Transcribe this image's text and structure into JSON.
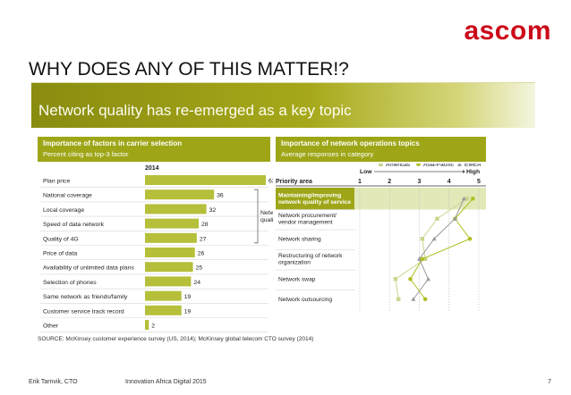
{
  "logo": {
    "text": "ascom",
    "color": "#cc0a1a"
  },
  "slide": {
    "title": "WHY DOES ANY OF THIS MATTER!?"
  },
  "panel": {
    "banner": "Network quality has re-emerged as a key topic",
    "source": "SOURCE: McKinsey customer experience survey (US, 2014); McKinsey global telecom CTO survey (2014)"
  },
  "footer": {
    "author": "Erik Tarnvik, CTO",
    "event": "Innovation Africa Digital 2015",
    "page": "7"
  },
  "colors": {
    "bar": "#b5bf3a",
    "header": "#9ea618",
    "highlight": "#e3e8b9",
    "americas": "#cbd58d",
    "asia": "#b0bf1e",
    "emea": "#9a9a9a"
  },
  "chart_data": [
    {
      "type": "bar",
      "orientation": "horizontal",
      "title": "Importance of factors in carrier selection",
      "subtitle": "Percent citing as top-3 factor",
      "year_label": "2014",
      "categories": [
        "Plan price",
        "National coverage",
        "Local coverage",
        "Speed of data network",
        "Quality of 4G",
        "Price of data",
        "Availability of unlimited data plans",
        "Selection of phones",
        "Same network as friends/family",
        "Customer service track record",
        "Other"
      ],
      "values": [
        63,
        36,
        32,
        28,
        27,
        26,
        25,
        24,
        19,
        19,
        2
      ],
      "bracket_label": "Network quality",
      "bracket_range": [
        1,
        4
      ],
      "xlim": [
        0,
        63
      ]
    },
    {
      "type": "line",
      "title": "Importance of network operations topics",
      "subtitle": "Average responses in category",
      "scale_low_label": "Low",
      "scale_high_label": "High",
      "xlim": [
        1,
        5
      ],
      "ticks": [
        "1",
        "2",
        "3",
        "4",
        "5"
      ],
      "axis_label": "Priority area",
      "categories": [
        "Maintaining/improving network quality of service",
        "Network procurement/ vendor management",
        "Network sharing",
        "Restructuring of network organization",
        "Network swap",
        "Network outsourcing"
      ],
      "highlight_index": 0,
      "series": [
        {
          "name": "Americas",
          "marker": "square",
          "values": [
            4.6,
            3.6,
            3.1,
            3.2,
            2.2,
            2.3
          ]
        },
        {
          "name": "Asia-Pacific",
          "marker": "circle",
          "values": [
            4.8,
            4.2,
            4.7,
            3.1,
            2.7,
            3.2
          ]
        },
        {
          "name": "EMEA",
          "marker": "triangle",
          "values": [
            4.5,
            4.2,
            3.5,
            3.0,
            3.3,
            2.8
          ]
        }
      ]
    }
  ]
}
